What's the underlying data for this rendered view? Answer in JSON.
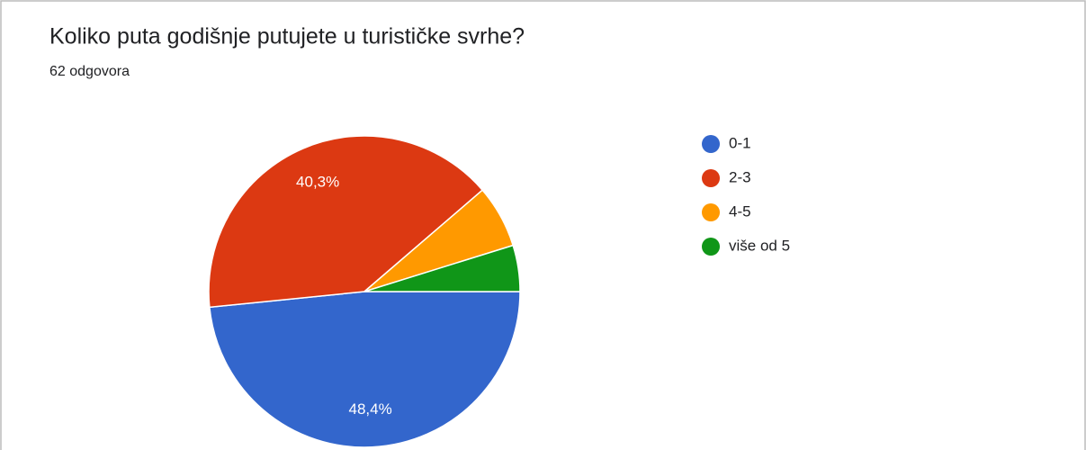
{
  "chart_data": {
    "type": "pie",
    "title": "Koliko puta godišnje putujete u turističke svrhe?",
    "subtitle": "62 odgovora",
    "categories": [
      "0-1",
      "2-3",
      "4-5",
      "više od 5"
    ],
    "values": [
      48.4,
      40.3,
      6.5,
      4.8
    ],
    "value_labels": [
      "48,4%",
      "40,3%",
      null,
      null
    ],
    "colors": [
      "#3366cc",
      "#dc3912",
      "#ff9900",
      "#109618"
    ],
    "legend": "right"
  }
}
